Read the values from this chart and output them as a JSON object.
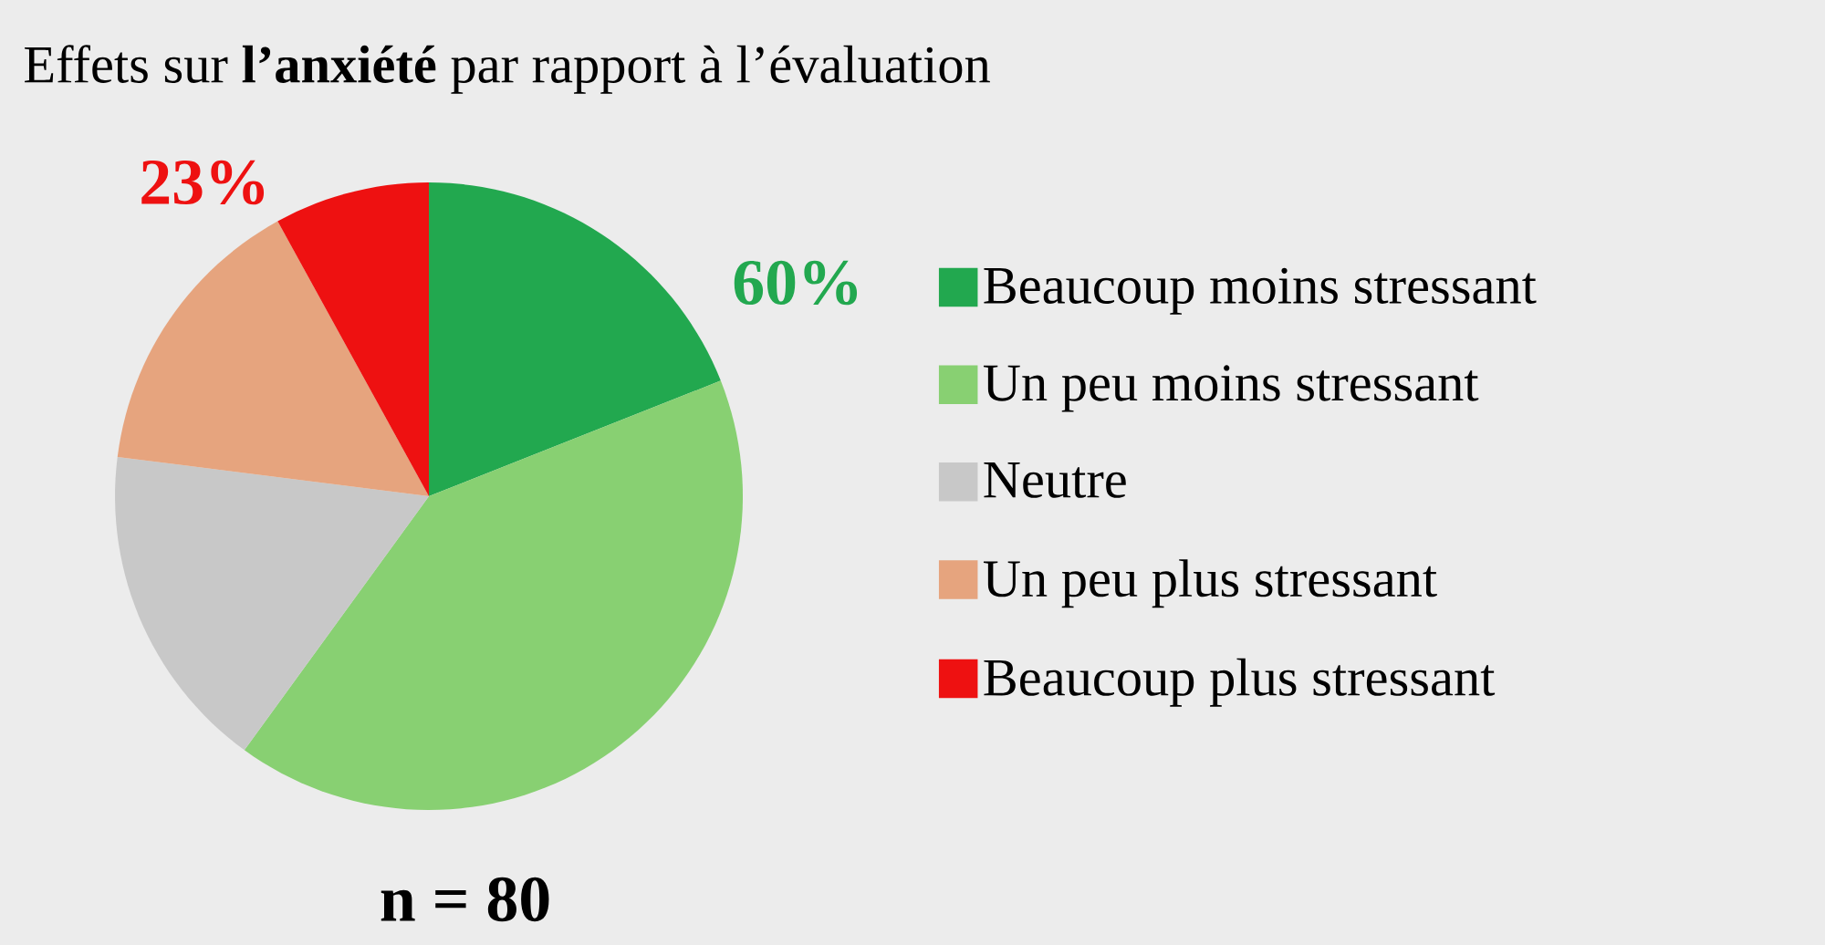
{
  "chart_data": {
    "type": "pie",
    "title": "Effets sur **l’anxiété** par rapport à l’évaluation",
    "categories": [
      "Beaucoup moins stressant",
      "Un peu moins stressant",
      "Neutre",
      "Un peu plus stressant",
      "Beaucoup plus stressant"
    ],
    "values": [
      19,
      41,
      17,
      15,
      8
    ],
    "colors": [
      "#22a84f",
      "#88d072",
      "#c8c8c8",
      "#e6a47e",
      "#ee1111"
    ],
    "legend": "right",
    "annotations": [
      "23%",
      "60%",
      "n = 80"
    ]
  }
}
